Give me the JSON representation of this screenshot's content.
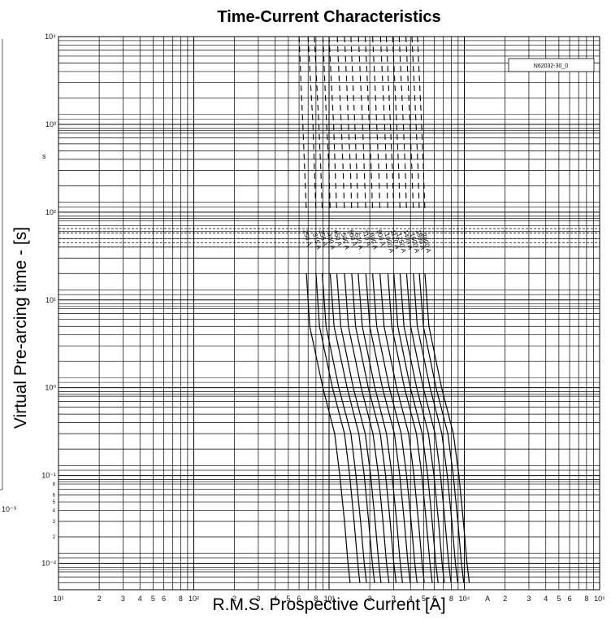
{
  "chart_data": {
    "type": "line",
    "title": "Time-Current Characteristics",
    "xlabel": "R.M.S. Prospective Current [A]",
    "ylabel": "Virtual Pre-arcing time - [s]",
    "x_scale": "log",
    "y_scale": "log",
    "xlim": [
      10,
      100000
    ],
    "ylim": [
      0.005,
      10000
    ],
    "x_unit_marker": "A",
    "y_unit_marker": "s",
    "grid": true,
    "reference_box": "N62032-30_0",
    "x_ticks": [
      {
        "value": 10,
        "label": "10¹"
      },
      {
        "value": 20,
        "label": "2"
      },
      {
        "value": 30,
        "label": "3"
      },
      {
        "value": 40,
        "label": "4"
      },
      {
        "value": 50,
        "label": "5"
      },
      {
        "value": 60,
        "label": "6"
      },
      {
        "value": 80,
        "label": "8"
      },
      {
        "value": 100,
        "label": "10²"
      },
      {
        "value": 200,
        "label": "2"
      },
      {
        "value": 300,
        "label": "3"
      },
      {
        "value": 400,
        "label": "4"
      },
      {
        "value": 500,
        "label": "5"
      },
      {
        "value": 600,
        "label": "6"
      },
      {
        "value": 800,
        "label": "8"
      },
      {
        "value": 1000,
        "label": "10³"
      },
      {
        "value": 2000,
        "label": "2"
      },
      {
        "value": 3000,
        "label": "3"
      },
      {
        "value": 4000,
        "label": "4"
      },
      {
        "value": 5000,
        "label": "5"
      },
      {
        "value": 6000,
        "label": "6"
      },
      {
        "value": 8000,
        "label": "8"
      },
      {
        "value": 10000,
        "label": "10⁴"
      },
      {
        "value": 20000,
        "label": "2"
      },
      {
        "value": 30000,
        "label": "3"
      },
      {
        "value": 40000,
        "label": "4"
      },
      {
        "value": 50000,
        "label": "5"
      },
      {
        "value": 60000,
        "label": "6"
      },
      {
        "value": 80000,
        "label": "8"
      },
      {
        "value": 100000,
        "label": "10⁵"
      }
    ],
    "y_ticks": [
      {
        "value": 10000,
        "label": "10⁴"
      },
      {
        "value": 1000,
        "label": "10³"
      },
      {
        "value": 100,
        "label": "10²"
      },
      {
        "value": 10,
        "label": "10¹"
      },
      {
        "value": 1,
        "label": "10⁰"
      },
      {
        "value": 0.1,
        "label": "10⁻¹"
      },
      {
        "value": 0.01,
        "label": "10⁻²"
      }
    ],
    "y_minor_ticks": [
      {
        "value": 0.08,
        "label": "8"
      },
      {
        "value": 0.06,
        "label": "6"
      },
      {
        "value": 0.05,
        "label": "5"
      },
      {
        "value": 0.04,
        "label": "4"
      },
      {
        "value": 0.03,
        "label": "3"
      },
      {
        "value": 0.02,
        "label": "2"
      }
    ],
    "dashed_levels": [
      40,
      45,
      50,
      58,
      65
    ],
    "series": [
      {
        "name": "250 A",
        "values": [
          [
            600,
            10000
          ],
          [
            620,
            3000
          ],
          [
            640,
            1000
          ],
          [
            660,
            300
          ],
          [
            680,
            100
          ],
          [
            680,
            20
          ],
          [
            720,
            5
          ],
          [
            900,
            1
          ],
          [
            1100,
            0.3
          ],
          [
            1200,
            0.1
          ],
          [
            1300,
            0.03
          ],
          [
            1380,
            0.01
          ],
          [
            1430,
            0.006
          ]
        ]
      },
      {
        "name": "315 A",
        "values": [
          [
            700,
            10000
          ],
          [
            730,
            3000
          ],
          [
            760,
            1000
          ],
          [
            780,
            300
          ],
          [
            800,
            100
          ],
          [
            800,
            20
          ],
          [
            850,
            5
          ],
          [
            1060,
            1
          ],
          [
            1300,
            0.3
          ],
          [
            1420,
            0.1
          ],
          [
            1530,
            0.03
          ],
          [
            1630,
            0.01
          ],
          [
            1690,
            0.006
          ]
        ]
      },
      {
        "name": "355 A",
        "values": [
          [
            780,
            10000
          ],
          [
            810,
            3000
          ],
          [
            840,
            1000
          ],
          [
            870,
            300
          ],
          [
            890,
            100
          ],
          [
            890,
            20
          ],
          [
            950,
            5
          ],
          [
            1180,
            1
          ],
          [
            1450,
            0.3
          ],
          [
            1580,
            0.1
          ],
          [
            1710,
            0.03
          ],
          [
            1820,
            0.01
          ],
          [
            1890,
            0.006
          ]
        ]
      },
      {
        "name": "400 A",
        "values": [
          [
            900,
            10000
          ],
          [
            930,
            3000
          ],
          [
            960,
            1000
          ],
          [
            1000,
            300
          ],
          [
            1020,
            100
          ],
          [
            1020,
            20
          ],
          [
            1090,
            5
          ],
          [
            1360,
            1
          ],
          [
            1660,
            0.3
          ],
          [
            1820,
            0.1
          ],
          [
            1960,
            0.03
          ],
          [
            2090,
            0.01
          ],
          [
            2170,
            0.006
          ]
        ]
      },
      {
        "name": "450 A",
        "values": [
          [
            1000,
            10000
          ],
          [
            1040,
            3000
          ],
          [
            1080,
            1000
          ],
          [
            1110,
            300
          ],
          [
            1140,
            100
          ],
          [
            1140,
            20
          ],
          [
            1220,
            5
          ],
          [
            1510,
            1
          ],
          [
            1850,
            0.3
          ],
          [
            2030,
            0.1
          ],
          [
            2190,
            0.03
          ],
          [
            2330,
            0.01
          ],
          [
            2420,
            0.006
          ]
        ]
      },
      {
        "name": "500 A",
        "values": [
          [
            1150,
            10000
          ],
          [
            1190,
            3000
          ],
          [
            1230,
            1000
          ],
          [
            1270,
            300
          ],
          [
            1300,
            100
          ],
          [
            1300,
            20
          ],
          [
            1390,
            5
          ],
          [
            1730,
            1
          ],
          [
            2110,
            0.3
          ],
          [
            2320,
            0.1
          ],
          [
            2500,
            0.03
          ],
          [
            2660,
            0.01
          ],
          [
            2770,
            0.006
          ]
        ]
      },
      {
        "name": "560 A",
        "values": [
          [
            1300,
            10000
          ],
          [
            1350,
            3000
          ],
          [
            1390,
            1000
          ],
          [
            1440,
            300
          ],
          [
            1470,
            100
          ],
          [
            1470,
            20
          ],
          [
            1570,
            5
          ],
          [
            1950,
            1
          ],
          [
            2390,
            0.3
          ],
          [
            2620,
            0.1
          ],
          [
            2830,
            0.03
          ],
          [
            3010,
            0.01
          ],
          [
            3130,
            0.006
          ]
        ]
      },
      {
        "name": "630 A",
        "values": [
          [
            1450,
            10000
          ],
          [
            1500,
            3000
          ],
          [
            1550,
            1000
          ],
          [
            1600,
            300
          ],
          [
            1640,
            100
          ],
          [
            1640,
            20
          ],
          [
            1760,
            5
          ],
          [
            2180,
            1
          ],
          [
            2660,
            0.3
          ],
          [
            2920,
            0.1
          ],
          [
            3160,
            0.03
          ],
          [
            3360,
            0.01
          ],
          [
            3490,
            0.006
          ]
        ]
      },
      {
        "name": "710 A",
        "values": [
          [
            1650,
            10000
          ],
          [
            1710,
            3000
          ],
          [
            1770,
            1000
          ],
          [
            1820,
            300
          ],
          [
            1870,
            100
          ],
          [
            1870,
            20
          ],
          [
            2000,
            5
          ],
          [
            2480,
            1
          ],
          [
            3040,
            0.3
          ],
          [
            3330,
            0.1
          ],
          [
            3600,
            0.03
          ],
          [
            3830,
            0.01
          ],
          [
            3980,
            0.006
          ]
        ]
      },
      {
        "name": "800 A",
        "values": [
          [
            1850,
            10000
          ],
          [
            1920,
            3000
          ],
          [
            1980,
            1000
          ],
          [
            2050,
            300
          ],
          [
            2100,
            100
          ],
          [
            2100,
            20
          ],
          [
            2250,
            5
          ],
          [
            2790,
            1
          ],
          [
            3410,
            0.3
          ],
          [
            3740,
            0.1
          ],
          [
            4040,
            0.03
          ],
          [
            4300,
            0.01
          ],
          [
            4470,
            0.006
          ]
        ]
      },
      {
        "name": "900 A",
        "values": [
          [
            2100,
            10000
          ],
          [
            2180,
            3000
          ],
          [
            2250,
            1000
          ],
          [
            2330,
            300
          ],
          [
            2380,
            100
          ],
          [
            2380,
            20
          ],
          [
            2550,
            5
          ],
          [
            3160,
            1
          ],
          [
            3870,
            0.3
          ],
          [
            4240,
            0.1
          ],
          [
            4580,
            0.03
          ],
          [
            4870,
            0.01
          ],
          [
            5060,
            0.006
          ]
        ]
      },
      {
        "name": "1000 A",
        "values": [
          [
            2400,
            10000
          ],
          [
            2490,
            3000
          ],
          [
            2570,
            1000
          ],
          [
            2660,
            300
          ],
          [
            2720,
            100
          ],
          [
            2720,
            20
          ],
          [
            2910,
            5
          ],
          [
            3610,
            1
          ],
          [
            4420,
            0.3
          ],
          [
            4850,
            0.1
          ],
          [
            5230,
            0.03
          ],
          [
            5570,
            0.01
          ],
          [
            5790,
            0.006
          ]
        ]
      },
      {
        "name": "1120 A",
        "values": [
          [
            2650,
            10000
          ],
          [
            2750,
            3000
          ],
          [
            2840,
            1000
          ],
          [
            2940,
            300
          ],
          [
            3010,
            100
          ],
          [
            3010,
            20
          ],
          [
            3220,
            5
          ],
          [
            3990,
            1
          ],
          [
            4880,
            0.3
          ],
          [
            5360,
            0.1
          ],
          [
            5780,
            0.03
          ],
          [
            6150,
            0.01
          ],
          [
            6400,
            0.006
          ]
        ]
      },
      {
        "name": "1250 A",
        "values": [
          [
            2950,
            10000
          ],
          [
            3060,
            3000
          ],
          [
            3160,
            1000
          ],
          [
            3270,
            300
          ],
          [
            3350,
            100
          ],
          [
            3350,
            20
          ],
          [
            3580,
            5
          ],
          [
            4440,
            1
          ],
          [
            5430,
            0.3
          ],
          [
            5960,
            0.1
          ],
          [
            6440,
            0.03
          ],
          [
            6850,
            0.01
          ],
          [
            7120,
            0.006
          ]
        ]
      },
      {
        "name": "1400 A",
        "values": [
          [
            3300,
            10000
          ],
          [
            3420,
            3000
          ],
          [
            3540,
            1000
          ],
          [
            3660,
            300
          ],
          [
            3740,
            100
          ],
          [
            3740,
            20
          ],
          [
            4010,
            5
          ],
          [
            4970,
            1
          ],
          [
            6080,
            0.3
          ],
          [
            6670,
            0.1
          ],
          [
            7200,
            0.03
          ],
          [
            7660,
            0.01
          ],
          [
            7970,
            0.006
          ]
        ]
      },
      {
        "name": "1600 A",
        "values": [
          [
            3700,
            10000
          ],
          [
            3840,
            3000
          ],
          [
            3970,
            1000
          ],
          [
            4100,
            300
          ],
          [
            4200,
            100
          ],
          [
            4200,
            20
          ],
          [
            4490,
            5
          ],
          [
            5580,
            1
          ],
          [
            6820,
            0.3
          ],
          [
            7480,
            0.1
          ],
          [
            8080,
            0.03
          ],
          [
            8590,
            0.01
          ],
          [
            8940,
            0.006
          ]
        ]
      },
      {
        "name": "1800 A",
        "values": [
          [
            4100,
            10000
          ],
          [
            4250,
            3000
          ],
          [
            4400,
            1000
          ],
          [
            4550,
            300
          ],
          [
            4650,
            100
          ],
          [
            4650,
            20
          ],
          [
            4980,
            5
          ],
          [
            6180,
            1
          ],
          [
            7550,
            0.3
          ],
          [
            8290,
            0.1
          ],
          [
            8950,
            0.03
          ],
          [
            9520,
            0.01
          ],
          [
            9900,
            0.006
          ]
        ]
      },
      {
        "name": "2000 A",
        "values": [
          [
            4500,
            10000
          ],
          [
            4670,
            3000
          ],
          [
            4830,
            1000
          ],
          [
            4990,
            300
          ],
          [
            5110,
            100
          ],
          [
            5110,
            20
          ],
          [
            5470,
            5
          ],
          [
            6790,
            1
          ],
          [
            8300,
            0.3
          ],
          [
            9110,
            0.1
          ],
          [
            9830,
            0.03
          ],
          [
            10460,
            0.01
          ],
          [
            10880,
            0.006
          ]
        ]
      }
    ]
  }
}
